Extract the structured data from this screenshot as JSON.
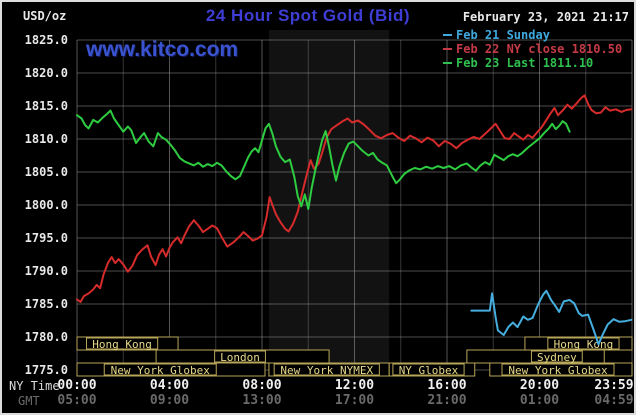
{
  "header": {
    "units": "USD/oz",
    "title": "24 Hour Spot Gold (Bid)",
    "datetime": "February 23, 2021 21:17",
    "watermark": "www.kitco.com"
  },
  "legend": {
    "items": [
      {
        "label": "Feb 21 Sunday",
        "color": "#3fa9dd"
      },
      {
        "label": "Feb 22 NY close 1810.50",
        "color": "#c43b46"
      },
      {
        "label": "Feb 23 Last 1811.10",
        "color": "#2fc04f"
      }
    ]
  },
  "axes": {
    "ny_row_label": "NY Time",
    "gmt_row_label": "GMT",
    "y_ticks": [
      "1825.0",
      "1820.0",
      "1815.0",
      "1810.0",
      "1805.0",
      "1800.0",
      "1795.0",
      "1790.0",
      "1785.0",
      "1780.0",
      "1775.0"
    ],
    "x_ticks": [
      {
        "t": 0,
        "ny": "00:00",
        "gmt": "05:00"
      },
      {
        "t": 4,
        "ny": "04:00",
        "gmt": "09:00"
      },
      {
        "t": 8,
        "ny": "08:00",
        "gmt": "13:00"
      },
      {
        "t": 12,
        "ny": "12:00",
        "gmt": "17:00"
      },
      {
        "t": 16,
        "ny": "16:00",
        "gmt": "21:00"
      },
      {
        "t": 20,
        "ny": "20:00",
        "gmt": "01:00"
      },
      {
        "t": 24,
        "ny": "23:59",
        "gmt": "04:59"
      }
    ]
  },
  "sessions": {
    "border_color": "#b7a559",
    "text_color": "#e6d88a",
    "rows": [
      {
        "row": 0,
        "label": "Hong Kong",
        "start": 0,
        "end": 4.37,
        "label_at": 1.95
      },
      {
        "row": 0,
        "label": "Hong Kong",
        "start": 19.37,
        "end": 24,
        "label_at": 21.9
      },
      {
        "row": 1,
        "label": "London",
        "start": 3.42,
        "end": 10.9,
        "label_at": 7.05
      },
      {
        "row": 1,
        "label": "Sydney",
        "start": 16.86,
        "end": 22.8,
        "label_at": 20.75
      },
      {
        "row": 2,
        "label": "New York Globex",
        "start": 0,
        "end": 8.13,
        "label_at": 3.6
      },
      {
        "row": 2,
        "label": "New York NYMEX",
        "start": 8.3,
        "end": 13.5,
        "label_at": 10.8
      },
      {
        "row": 2,
        "label": "NY Globex",
        "start": 13.5,
        "end": 17.2,
        "label_at": 15.2
      },
      {
        "row": 2,
        "label": "New York Globex",
        "start": 17.85,
        "end": 24,
        "label_at": 20.8
      }
    ]
  },
  "chart_data": {
    "type": "line",
    "title": "24 Hour Spot Gold (Bid)",
    "xlabel": "Time (NY Time / GMT)",
    "ylabel": "USD/oz",
    "xlim_hours": [
      0,
      24
    ],
    "ylim": [
      1775,
      1825
    ],
    "grid": "on",
    "legend_position": "top-right",
    "shaded_band_hours": {
      "start": 8.3,
      "end": 13.5
    },
    "series": [
      {
        "name": "Feb 21 Sunday",
        "color": "#45aede",
        "points": [
          [
            17.05,
            1784.0
          ],
          [
            17.85,
            1784.0
          ],
          [
            17.95,
            1786.6
          ],
          [
            18.1,
            1783.0
          ],
          [
            18.2,
            1781.0
          ],
          [
            18.45,
            1780.3
          ],
          [
            18.65,
            1781.5
          ],
          [
            18.85,
            1782.2
          ],
          [
            19.05,
            1781.5
          ],
          [
            19.3,
            1783.1
          ],
          [
            19.5,
            1782.6
          ],
          [
            19.7,
            1782.9
          ],
          [
            19.95,
            1785.0
          ],
          [
            20.15,
            1786.4
          ],
          [
            20.3,
            1787.0
          ],
          [
            20.5,
            1785.6
          ],
          [
            20.65,
            1784.9
          ],
          [
            20.85,
            1783.8
          ],
          [
            21.05,
            1785.4
          ],
          [
            21.3,
            1785.6
          ],
          [
            21.5,
            1785.1
          ],
          [
            21.7,
            1783.6
          ],
          [
            21.85,
            1783.2
          ],
          [
            22.1,
            1783.4
          ],
          [
            22.35,
            1781.0
          ],
          [
            22.55,
            1778.9
          ],
          [
            22.75,
            1780.5
          ],
          [
            22.95,
            1781.9
          ],
          [
            23.2,
            1782.7
          ],
          [
            23.45,
            1782.3
          ],
          [
            23.7,
            1782.4
          ],
          [
            23.98,
            1782.6
          ]
        ]
      },
      {
        "name": "Feb 22 NY close 1810.50",
        "color": "#d62b2b",
        "points": [
          [
            0,
            1785.7
          ],
          [
            0.15,
            1785.3
          ],
          [
            0.3,
            1786.2
          ],
          [
            0.5,
            1786.6
          ],
          [
            0.7,
            1787.2
          ],
          [
            0.85,
            1787.9
          ],
          [
            1.0,
            1787.4
          ],
          [
            1.15,
            1789.5
          ],
          [
            1.35,
            1791.3
          ],
          [
            1.5,
            1792.1
          ],
          [
            1.65,
            1791.2
          ],
          [
            1.8,
            1791.8
          ],
          [
            2.0,
            1791.0
          ],
          [
            2.2,
            1789.9
          ],
          [
            2.4,
            1790.8
          ],
          [
            2.6,
            1792.4
          ],
          [
            2.8,
            1793.2
          ],
          [
            3.05,
            1793.9
          ],
          [
            3.2,
            1792.2
          ],
          [
            3.4,
            1790.9
          ],
          [
            3.55,
            1792.5
          ],
          [
            3.7,
            1793.3
          ],
          [
            3.85,
            1792.2
          ],
          [
            4.0,
            1793.5
          ],
          [
            4.15,
            1794.4
          ],
          [
            4.35,
            1795.1
          ],
          [
            4.5,
            1794.2
          ],
          [
            4.65,
            1795.4
          ],
          [
            4.85,
            1796.8
          ],
          [
            5.05,
            1797.7
          ],
          [
            5.25,
            1796.9
          ],
          [
            5.45,
            1795.9
          ],
          [
            5.65,
            1796.4
          ],
          [
            5.85,
            1796.9
          ],
          [
            6.05,
            1796.5
          ],
          [
            6.25,
            1795.2
          ],
          [
            6.5,
            1793.7
          ],
          [
            6.75,
            1794.3
          ],
          [
            7.0,
            1795.1
          ],
          [
            7.2,
            1795.9
          ],
          [
            7.4,
            1795.3
          ],
          [
            7.6,
            1794.6
          ],
          [
            7.8,
            1794.9
          ],
          [
            8.0,
            1795.4
          ],
          [
            8.2,
            1798.2
          ],
          [
            8.33,
            1801.2
          ],
          [
            8.45,
            1800.0
          ],
          [
            8.6,
            1798.6
          ],
          [
            8.8,
            1797.4
          ],
          [
            9.0,
            1796.4
          ],
          [
            9.15,
            1796.0
          ],
          [
            9.35,
            1797.2
          ],
          [
            9.55,
            1799.0
          ],
          [
            9.75,
            1802.0
          ],
          [
            9.95,
            1804.8
          ],
          [
            10.1,
            1806.8
          ],
          [
            10.25,
            1805.5
          ],
          [
            10.45,
            1806.3
          ],
          [
            10.6,
            1807.9
          ],
          [
            10.8,
            1810.3
          ],
          [
            11.0,
            1811.5
          ],
          [
            11.2,
            1812.0
          ],
          [
            11.45,
            1812.6
          ],
          [
            11.7,
            1813.1
          ],
          [
            11.9,
            1812.5
          ],
          [
            12.15,
            1812.8
          ],
          [
            12.4,
            1812.2
          ],
          [
            12.65,
            1811.4
          ],
          [
            12.9,
            1810.5
          ],
          [
            13.15,
            1810.1
          ],
          [
            13.4,
            1810.6
          ],
          [
            13.65,
            1810.9
          ],
          [
            13.9,
            1810.2
          ],
          [
            14.15,
            1809.7
          ],
          [
            14.4,
            1810.5
          ],
          [
            14.65,
            1810.1
          ],
          [
            14.9,
            1809.5
          ],
          [
            15.15,
            1810.2
          ],
          [
            15.4,
            1809.8
          ],
          [
            15.65,
            1808.9
          ],
          [
            15.9,
            1809.7
          ],
          [
            16.15,
            1809.3
          ],
          [
            16.4,
            1808.6
          ],
          [
            16.65,
            1809.4
          ],
          [
            16.9,
            1809.9
          ],
          [
            17.15,
            1810.3
          ],
          [
            17.4,
            1810.0
          ],
          [
            17.65,
            1810.8
          ],
          [
            17.9,
            1811.6
          ],
          [
            18.1,
            1812.3
          ],
          [
            18.3,
            1811.2
          ],
          [
            18.5,
            1810.1
          ],
          [
            18.7,
            1810.0
          ],
          [
            18.9,
            1810.9
          ],
          [
            19.1,
            1810.4
          ],
          [
            19.3,
            1809.9
          ],
          [
            19.5,
            1810.6
          ],
          [
            19.7,
            1810.2
          ],
          [
            19.9,
            1811.0
          ],
          [
            20.1,
            1811.8
          ],
          [
            20.3,
            1812.9
          ],
          [
            20.5,
            1814.0
          ],
          [
            20.65,
            1814.7
          ],
          [
            20.8,
            1813.6
          ],
          [
            21.0,
            1814.3
          ],
          [
            21.2,
            1815.2
          ],
          [
            21.4,
            1814.6
          ],
          [
            21.6,
            1815.4
          ],
          [
            21.8,
            1816.2
          ],
          [
            21.95,
            1816.6
          ],
          [
            22.1,
            1815.3
          ],
          [
            22.25,
            1814.4
          ],
          [
            22.45,
            1813.9
          ],
          [
            22.65,
            1814.0
          ],
          [
            22.85,
            1814.8
          ],
          [
            23.05,
            1814.3
          ],
          [
            23.3,
            1814.5
          ],
          [
            23.55,
            1814.1
          ],
          [
            23.75,
            1814.4
          ],
          [
            23.98,
            1814.5
          ]
        ]
      },
      {
        "name": "Feb 23 Last 1811.10",
        "color": "#2ecc40",
        "points": [
          [
            0,
            1813.6
          ],
          [
            0.2,
            1813.1
          ],
          [
            0.35,
            1812.1
          ],
          [
            0.5,
            1811.6
          ],
          [
            0.7,
            1812.9
          ],
          [
            0.9,
            1812.5
          ],
          [
            1.1,
            1813.2
          ],
          [
            1.3,
            1813.8
          ],
          [
            1.45,
            1814.3
          ],
          [
            1.6,
            1813.1
          ],
          [
            1.8,
            1812.1
          ],
          [
            2.0,
            1811.1
          ],
          [
            2.2,
            1811.9
          ],
          [
            2.35,
            1811.3
          ],
          [
            2.55,
            1809.4
          ],
          [
            2.75,
            1810.3
          ],
          [
            2.9,
            1810.9
          ],
          [
            3.1,
            1809.6
          ],
          [
            3.3,
            1808.9
          ],
          [
            3.5,
            1810.9
          ],
          [
            3.65,
            1810.3
          ],
          [
            3.85,
            1809.9
          ],
          [
            4.05,
            1809.1
          ],
          [
            4.25,
            1808.2
          ],
          [
            4.45,
            1807.1
          ],
          [
            4.65,
            1806.6
          ],
          [
            4.85,
            1806.3
          ],
          [
            5.05,
            1806.0
          ],
          [
            5.25,
            1806.4
          ],
          [
            5.45,
            1805.8
          ],
          [
            5.65,
            1806.2
          ],
          [
            5.85,
            1805.9
          ],
          [
            6.05,
            1806.4
          ],
          [
            6.25,
            1806.0
          ],
          [
            6.45,
            1805.1
          ],
          [
            6.65,
            1804.4
          ],
          [
            6.85,
            1803.9
          ],
          [
            7.05,
            1804.4
          ],
          [
            7.2,
            1805.6
          ],
          [
            7.4,
            1807.2
          ],
          [
            7.55,
            1808.1
          ],
          [
            7.7,
            1808.6
          ],
          [
            7.85,
            1808.0
          ],
          [
            8.0,
            1809.8
          ],
          [
            8.15,
            1811.6
          ],
          [
            8.3,
            1812.3
          ],
          [
            8.45,
            1810.8
          ],
          [
            8.6,
            1808.9
          ],
          [
            8.8,
            1807.3
          ],
          [
            9.0,
            1806.5
          ],
          [
            9.2,
            1806.9
          ],
          [
            9.4,
            1804.2
          ],
          [
            9.55,
            1801.3
          ],
          [
            9.7,
            1799.8
          ],
          [
            9.85,
            1801.6
          ],
          [
            10.0,
            1799.4
          ],
          [
            10.15,
            1802.6
          ],
          [
            10.3,
            1805.2
          ],
          [
            10.45,
            1807.6
          ],
          [
            10.6,
            1809.8
          ],
          [
            10.75,
            1811.2
          ],
          [
            10.9,
            1808.8
          ],
          [
            11.05,
            1806.0
          ],
          [
            11.2,
            1803.7
          ],
          [
            11.35,
            1805.9
          ],
          [
            11.55,
            1807.9
          ],
          [
            11.75,
            1809.3
          ],
          [
            11.95,
            1809.6
          ],
          [
            12.15,
            1808.9
          ],
          [
            12.35,
            1808.2
          ],
          [
            12.6,
            1807.5
          ],
          [
            12.8,
            1807.9
          ],
          [
            13.0,
            1806.9
          ],
          [
            13.2,
            1806.4
          ],
          [
            13.4,
            1806.0
          ],
          [
            13.6,
            1804.6
          ],
          [
            13.8,
            1803.3
          ],
          [
            13.95,
            1803.8
          ],
          [
            14.15,
            1804.7
          ],
          [
            14.35,
            1805.2
          ],
          [
            14.6,
            1805.6
          ],
          [
            14.85,
            1805.4
          ],
          [
            15.1,
            1805.8
          ],
          [
            15.35,
            1805.5
          ],
          [
            15.6,
            1805.9
          ],
          [
            15.85,
            1805.6
          ],
          [
            16.1,
            1805.9
          ],
          [
            16.35,
            1805.4
          ],
          [
            16.6,
            1806.0
          ],
          [
            16.85,
            1806.3
          ],
          [
            17.05,
            1805.7
          ],
          [
            17.25,
            1805.2
          ],
          [
            17.45,
            1806.0
          ],
          [
            17.65,
            1806.5
          ],
          [
            17.85,
            1806.1
          ],
          [
            18.05,
            1807.6
          ],
          [
            18.25,
            1807.2
          ],
          [
            18.45,
            1806.8
          ],
          [
            18.65,
            1807.4
          ],
          [
            18.85,
            1807.7
          ],
          [
            19.05,
            1807.4
          ],
          [
            19.25,
            1807.9
          ],
          [
            19.5,
            1808.7
          ],
          [
            19.75,
            1809.4
          ],
          [
            20.0,
            1810.1
          ],
          [
            20.2,
            1810.9
          ],
          [
            20.4,
            1811.6
          ],
          [
            20.55,
            1812.3
          ],
          [
            20.7,
            1811.5
          ],
          [
            20.85,
            1812.0
          ],
          [
            21.0,
            1812.7
          ],
          [
            21.15,
            1812.3
          ],
          [
            21.3,
            1811.1
          ]
        ]
      }
    ]
  }
}
